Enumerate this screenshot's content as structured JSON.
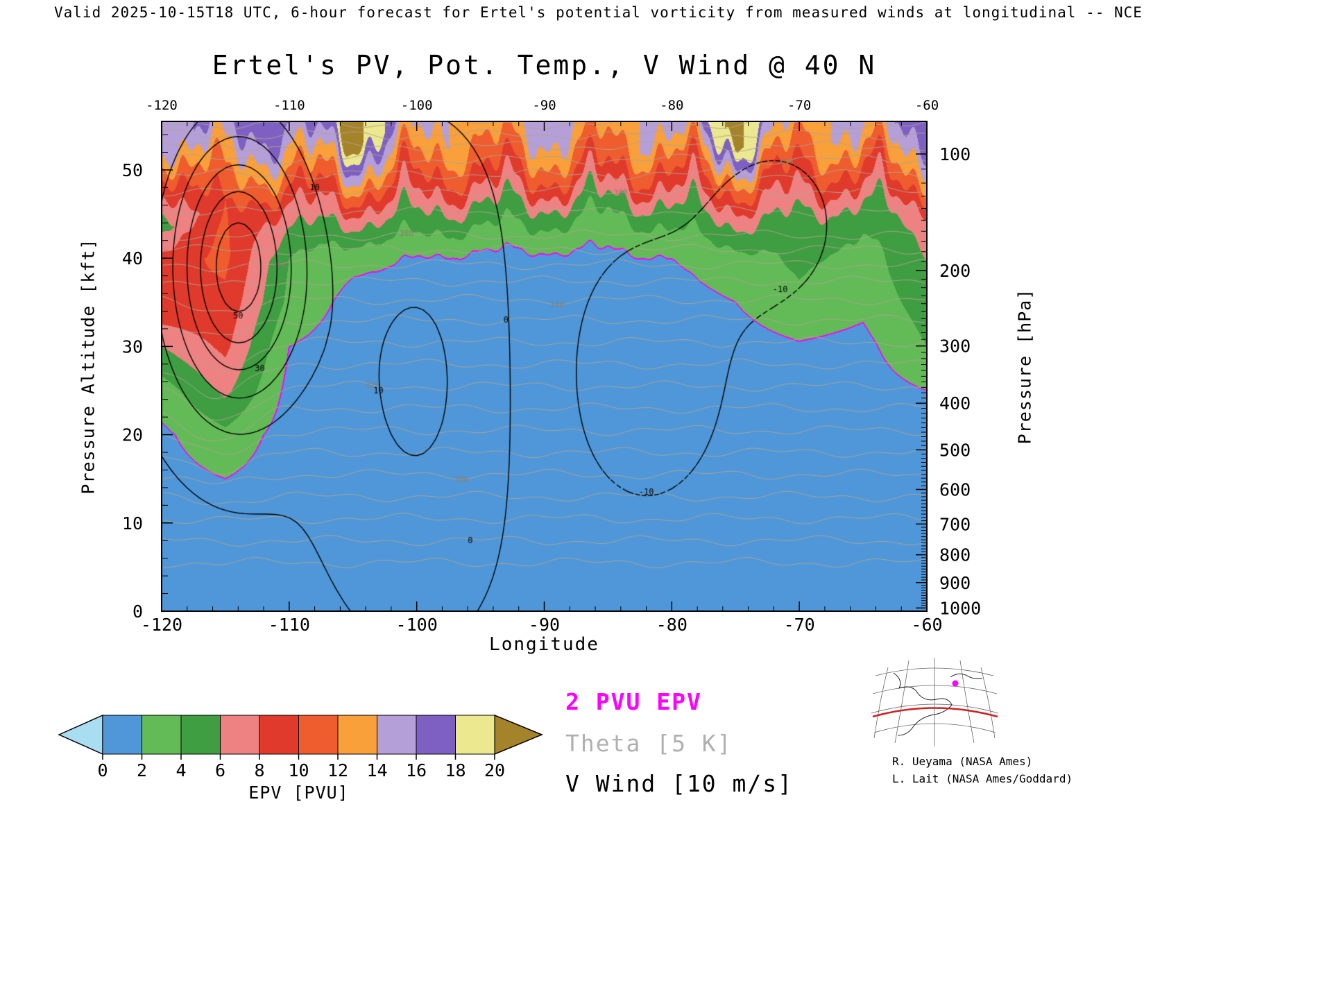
{
  "header": {
    "validity_line": "Valid 2025-10-15T18 UTC, 6-hour forecast for Ertel's potential vorticity from measured winds at longitudinal -- NCE"
  },
  "title": "Ertel's PV, Pot. Temp., V Wind @ 40 N",
  "legend": {
    "items": [
      {
        "label": "2 PVU EPV",
        "color": "#ff00ff"
      },
      {
        "label": "Theta [5 K]",
        "color": "#b0b0b0"
      },
      {
        "label": "V Wind [10 m/s]",
        "color": "#000000"
      }
    ]
  },
  "credits": [
    "R. Ueyama (NASA Ames)",
    "L. Lait (NASA Ames/Goddard)"
  ],
  "inset_map": {
    "latitude_line_color": "#cc2222",
    "marker_color": "#ff00ff"
  },
  "chart_data": {
    "type": "heatmap",
    "title": "Ertel's PV, Pot. Temp., V Wind @ 40 N",
    "xlabel": "Longitude",
    "ylabel_left": "Pressure Altitude [kft]",
    "ylabel_right": "Pressure [hPa]",
    "xlim": [
      -120,
      -60
    ],
    "ylim_kft": [
      0,
      55.5
    ],
    "x_ticks": [
      -120,
      -110,
      -100,
      -90,
      -80,
      -70,
      -60
    ],
    "x_minor_step": 2,
    "y_ticks_kft": [
      0,
      10,
      20,
      30,
      40,
      50
    ],
    "y_minor_step_kft": 2,
    "pressure_ticks_hpa": [
      100,
      200,
      300,
      400,
      500,
      600,
      700,
      800,
      900,
      1000
    ],
    "pressure_minor_step_hpa": 10,
    "epv_lons": [
      -120,
      -115,
      -110,
      -105,
      -100,
      -95,
      -90,
      -85,
      -80,
      -75,
      -70,
      -65,
      -60
    ],
    "epv_alts_kft": [
      0,
      5,
      10,
      15,
      20,
      25,
      30,
      35,
      40,
      45,
      50,
      55
    ],
    "epv_pvu": [
      [
        0.8,
        0.9,
        0.7,
        0.6,
        0.5,
        0.5,
        0.5,
        0.5,
        0.5,
        0.5,
        0.5,
        0.5,
        0.6
      ],
      [
        0.9,
        1.0,
        0.8,
        0.6,
        0.6,
        0.6,
        0.6,
        0.6,
        0.6,
        0.6,
        0.6,
        0.6,
        0.7
      ],
      [
        1.0,
        1.4,
        0.8,
        0.7,
        0.6,
        0.6,
        0.6,
        0.6,
        0.6,
        0.6,
        0.6,
        0.6,
        0.8
      ],
      [
        1.2,
        2.0,
        0.9,
        0.7,
        0.7,
        0.7,
        0.7,
        0.7,
        0.7,
        0.7,
        0.7,
        0.7,
        1.0
      ],
      [
        1.6,
        3.5,
        1.0,
        0.8,
        0.8,
        0.8,
        0.8,
        0.8,
        0.8,
        0.8,
        0.8,
        0.8,
        1.2
      ],
      [
        3.0,
        6.5,
        1.4,
        0.9,
        0.8,
        0.8,
        0.8,
        0.8,
        0.8,
        0.9,
        1.0,
        1.0,
        2.0
      ],
      [
        6.0,
        8.5,
        2.0,
        1.0,
        0.9,
        0.9,
        0.9,
        0.9,
        0.9,
        1.2,
        1.8,
        1.4,
        4.0
      ],
      [
        10.0,
        9.5,
        3.5,
        1.3,
        1.0,
        1.0,
        1.0,
        1.0,
        1.3,
        2.0,
        3.5,
        2.5,
        5.0
      ],
      [
        9.0,
        10.5,
        4.0,
        2.5,
        2.0,
        1.5,
        1.5,
        1.5,
        2.0,
        3.0,
        4.5,
        3.0,
        6.0
      ],
      [
        5.0,
        10.0,
        7.0,
        7.0,
        6.0,
        5.0,
        5.0,
        4.0,
        5.0,
        7.0,
        6.0,
        5.0,
        7.0
      ],
      [
        9.0,
        13.0,
        12.0,
        14.0,
        11.0,
        10.0,
        11.0,
        10.0,
        10.0,
        13.0,
        10.0,
        10.0,
        13.0
      ],
      [
        15.0,
        17.0,
        16.0,
        21.0,
        15.0,
        13.0,
        15.0,
        13.0,
        15.0,
        21.0,
        13.0,
        15.0,
        17.0
      ]
    ],
    "colorbar": {
      "label": "EPV [PVU]",
      "ticks": [
        0,
        2,
        4,
        6,
        8,
        10,
        12,
        14,
        16,
        18,
        20
      ],
      "segment_colors": [
        "#4f97d8",
        "#62bb57",
        "#3f9e42",
        "#ee8282",
        "#e03a2c",
        "#ef5c2e",
        "#f9a03a",
        "#b49fd9",
        "#7e60c2",
        "#ebe88f"
      ],
      "under_color": "#a9ddf2",
      "over_color": "#a5832b"
    },
    "contours": {
      "epv_highlight": {
        "level_pvu": 2,
        "color": "#ff00ff"
      },
      "theta_K": {
        "interval": 5,
        "color": "#b3a391",
        "levels": [
          280,
          285,
          290,
          295,
          300,
          305,
          310,
          315,
          320,
          325,
          330,
          335,
          340,
          345,
          350,
          355,
          360,
          370,
          380,
          390,
          400,
          410,
          420,
          430
        ],
        "level_heights_kft": [
          5.5,
          8,
          10.5,
          13,
          15.5,
          18,
          20.5,
          23,
          25.5,
          28,
          30.5,
          33,
          35.3,
          37.4,
          39.3,
          41,
          42.6,
          45.3,
          47.6,
          49.5,
          51.2,
          52.7,
          54,
          55.2
        ],
        "labels": [
          {
            "text": "300",
            "lon": -96.5
          },
          {
            "text": "320",
            "lon": -103.5
          },
          {
            "text": "340",
            "lon": -89
          },
          {
            "text": "350",
            "lon": -110.8
          },
          {
            "text": "360",
            "lon": -100.8
          },
          {
            "text": "380",
            "lon": -84
          },
          {
            "text": "400",
            "lon": -71
          }
        ]
      },
      "v_wind_ms": {
        "interval": 10,
        "levels": [
          -10,
          0,
          10,
          20,
          30,
          40,
          50
        ],
        "negative_style": "dashed",
        "color": "#000000",
        "background_ms": -2,
        "jets": [
          {
            "lon": -114,
            "z_kft": 39,
            "lon_sigma": 5.2,
            "z_sigma": 15,
            "amp_ms": 58
          },
          {
            "lon": -100,
            "z_kft": 26,
            "lon_sigma": 7,
            "z_sigma": 22,
            "amp_ms": 14
          },
          {
            "lon": -82,
            "z_kft": 27,
            "lon_sigma": 8.5,
            "z_sigma": 20,
            "amp_ms": -13
          },
          {
            "lon": -71.5,
            "z_kft": 44,
            "lon_sigma": 6,
            "z_sigma": 11,
            "amp_ms": -11
          }
        ],
        "labels": [
          {
            "text": "50",
            "lon": -114,
            "z_kft": 33.5
          },
          {
            "text": "30",
            "lon": -112.3,
            "z_kft": 27.5
          },
          {
            "text": "10",
            "lon": -108,
            "z_kft": 48
          },
          {
            "text": "10",
            "lon": -103,
            "z_kft": 25
          },
          {
            "text": "0",
            "lon": -93,
            "z_kft": 33
          },
          {
            "text": "0",
            "lon": -95.8,
            "z_kft": 8
          },
          {
            "text": "-10",
            "lon": -82,
            "z_kft": 13.5
          },
          {
            "text": "-10",
            "lon": -71.5,
            "z_kft": 36.5
          }
        ]
      }
    },
    "render_style": {
      "top_wave_amp_kft": [
        2.6,
        1.5,
        0.8
      ],
      "trop_noise_amp_pvu": 0.8
    }
  }
}
